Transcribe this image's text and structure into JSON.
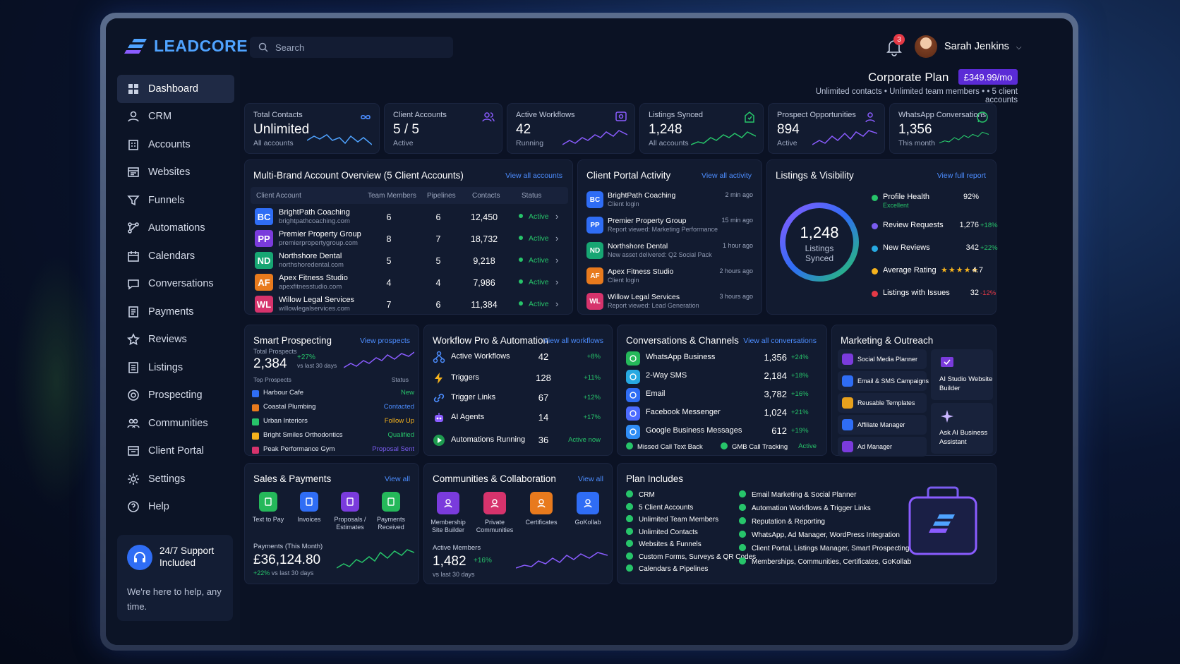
{
  "brand": {
    "name": "LEADCORE"
  },
  "search": {
    "placeholder": "Search"
  },
  "notifications": {
    "count": "3"
  },
  "user": {
    "name": "Sarah Jenkins"
  },
  "plan": {
    "title": "Corporate Plan",
    "price": "£349.99/mo",
    "subtitle": "Unlimited contacts • Unlimited team members • • 5 client accounts"
  },
  "sidebar": {
    "items": [
      {
        "label": "Dashboard",
        "icon": "grid-icon"
      },
      {
        "label": "CRM",
        "icon": "user-icon"
      },
      {
        "label": "Accounts",
        "icon": "building-icon"
      },
      {
        "label": "Websites",
        "icon": "browser-icon"
      },
      {
        "label": "Funnels",
        "icon": "funnel-icon"
      },
      {
        "label": "Automations",
        "icon": "flow-icon"
      },
      {
        "label": "Calendars",
        "icon": "calendar-icon"
      },
      {
        "label": "Conversations",
        "icon": "chat-icon"
      },
      {
        "label": "Payments",
        "icon": "receipt-icon"
      },
      {
        "label": "Reviews",
        "icon": "star-icon"
      },
      {
        "label": "Listings",
        "icon": "list-icon"
      },
      {
        "label": "Prospecting",
        "icon": "target-icon"
      },
      {
        "label": "Communities",
        "icon": "group-icon"
      },
      {
        "label": "Client Portal",
        "icon": "portal-icon"
      },
      {
        "label": "Settings",
        "icon": "gear-icon"
      },
      {
        "label": "Help",
        "icon": "help-icon"
      }
    ],
    "support_title": "24/7 Support Included",
    "support_text": "We're here to help, any time."
  },
  "stats": [
    {
      "label": "Total Contacts",
      "value": "Unlimited",
      "sub": "All accounts",
      "icon": "infinity-icon"
    },
    {
      "label": "Client Accounts",
      "value": "5 / 5",
      "sub": "Active",
      "icon": "users-icon"
    },
    {
      "label": "Active Workflows",
      "value": "42",
      "sub": "Running",
      "icon": "workflow-icon"
    },
    {
      "label": "Listings Synced",
      "value": "1,248",
      "sub": "All accounts",
      "icon": "sync-icon"
    },
    {
      "label": "Prospect Opportunities",
      "value": "894",
      "sub": "Active",
      "icon": "prospect-icon"
    },
    {
      "label": "WhatsApp Conversations",
      "value": "1,356",
      "sub": "This month",
      "icon": "whatsapp-icon"
    }
  ],
  "overview": {
    "title": "Multi-Brand Account Overview (5 Client Accounts)",
    "link": "View all accounts",
    "headers": [
      "Client Account",
      "Team Members",
      "Pipelines",
      "Contacts",
      "Status"
    ],
    "rows": [
      {
        "initials": "BC",
        "name": "BrightPath Coaching",
        "site": "brightpathcoaching.com",
        "team": "6",
        "pipelines": "6",
        "contacts": "12,450",
        "status": "Active",
        "color": "#2f6df5"
      },
      {
        "initials": "PP",
        "name": "Premier Property Group",
        "site": "premierpropertygroup.com",
        "team": "8",
        "pipelines": "7",
        "contacts": "18,732",
        "status": "Active",
        "color": "#7a3bdc"
      },
      {
        "initials": "ND",
        "name": "Northshore Dental",
        "site": "northshoredental.com",
        "team": "5",
        "pipelines": "5",
        "contacts": "9,218",
        "status": "Active",
        "color": "#17a673"
      },
      {
        "initials": "AF",
        "name": "Apex Fitness Studio",
        "site": "apexfitnesstudio.com",
        "team": "4",
        "pipelines": "4",
        "contacts": "7,986",
        "status": "Active",
        "color": "#e87a1d"
      },
      {
        "initials": "WL",
        "name": "Willow Legal Services",
        "site": "willowlegalservices.com",
        "team": "7",
        "pipelines": "6",
        "contacts": "11,384",
        "status": "Active",
        "color": "#d6336c"
      }
    ]
  },
  "portal": {
    "title": "Client Portal Activity",
    "link": "View all activity",
    "items": [
      {
        "initials": "BC",
        "name": "BrightPath Coaching",
        "sub": "Client login",
        "time": "2 min ago",
        "color": "#2f6df5"
      },
      {
        "initials": "PP",
        "name": "Premier Property Group",
        "sub": "Report viewed: Marketing Performance",
        "time": "15 min ago",
        "color": "#2f6df5"
      },
      {
        "initials": "ND",
        "name": "Northshore Dental",
        "sub": "New asset delivered: Q2 Social Pack",
        "time": "1 hour ago",
        "color": "#17a673"
      },
      {
        "initials": "AF",
        "name": "Apex Fitness Studio",
        "sub": "Client login",
        "time": "2 hours ago",
        "color": "#e87a1d"
      },
      {
        "initials": "WL",
        "name": "Willow Legal Services",
        "sub": "Report viewed: Lead Generation",
        "time": "3 hours ago",
        "color": "#d6336c"
      }
    ]
  },
  "listings": {
    "title": "Listings & Visibility",
    "link": "View full report",
    "ring_value": "1,248",
    "ring_label1": "Listings",
    "ring_label2": "Synced",
    "items": [
      {
        "label": "Profile Health",
        "sub": "Excellent",
        "value": "92%",
        "change": "",
        "color": "#27c46a"
      },
      {
        "label": "Review Requests",
        "value": "1,276",
        "change": "+18%",
        "color": "#7a5cf0"
      },
      {
        "label": "New Reviews",
        "value": "342",
        "change": "+22%",
        "color": "#27a9e1"
      },
      {
        "label": "Average Rating",
        "value": "4.7",
        "change": "",
        "stars": "★★★★★",
        "color": "#f5b21d"
      },
      {
        "label": "Listings with Issues",
        "value": "32",
        "change": "-12%",
        "color": "#e53946"
      }
    ]
  },
  "prospecting": {
    "title": "Smart Prospecting",
    "link": "View prospects",
    "total_label": "Total Prospects",
    "total": "2,384",
    "change": "+27%",
    "period": "vs last 30 days",
    "col1": "Top Prospects",
    "col2": "Status",
    "rows": [
      {
        "name": "Harbour Cafe",
        "status": "New",
        "color": "#2f6df5",
        "scolor": "#27c46a"
      },
      {
        "name": "Coastal Plumbing",
        "status": "Contacted",
        "color": "#e87a1d",
        "scolor": "#4c8dff"
      },
      {
        "name": "Urban Interiors",
        "status": "Follow Up",
        "color": "#27c46a",
        "scolor": "#f5b21d"
      },
      {
        "name": "Bright Smiles Orthodontics",
        "status": "Qualified",
        "color": "#f5b21d",
        "scolor": "#27c46a"
      },
      {
        "name": "Peak Performance Gym",
        "status": "Proposal Sent",
        "color": "#d6336c",
        "scolor": "#7a5cf0"
      }
    ]
  },
  "workflow": {
    "title": "Workflow Pro & Automation",
    "link": "View all workflows",
    "rows": [
      {
        "label": "Active Workflows",
        "value": "42",
        "change": "+8%"
      },
      {
        "label": "Triggers",
        "value": "128",
        "change": "+11%"
      },
      {
        "label": "Trigger Links",
        "value": "67",
        "change": "+12%"
      },
      {
        "label": "AI Agents",
        "value": "14",
        "change": "+17%"
      },
      {
        "label": "Automations Running",
        "value": "36",
        "change": "Active now"
      }
    ]
  },
  "conversations": {
    "title": "Conversations & Channels",
    "link": "View all conversations",
    "rows": [
      {
        "label": "WhatsApp Business",
        "value": "1,356",
        "change": "+24%",
        "color": "#25b85a"
      },
      {
        "label": "2-Way SMS",
        "value": "2,184",
        "change": "+18%",
        "color": "#27a9e1"
      },
      {
        "label": "Email",
        "value": "3,782",
        "change": "+16%",
        "color": "#2f6df5"
      },
      {
        "label": "Facebook Messenger",
        "value": "1,024",
        "change": "+21%",
        "color": "#4c6bff"
      },
      {
        "label": "Google Business Messages",
        "value": "612",
        "change": "+19%",
        "color": "#2f8df5"
      }
    ],
    "footer1": "Missed Call Text Back",
    "footer2": "GMB Call Tracking",
    "footer2_status": "Active"
  },
  "marketing": {
    "title": "Marketing & Outreach",
    "items": [
      {
        "label": "Social Media Planner",
        "color": "#7a3bdc"
      },
      {
        "label": "Email & SMS Campaigns",
        "color": "#2f6df5"
      },
      {
        "label": "Reusable Templates",
        "color": "#e8a11d"
      },
      {
        "label": "Affiliate Manager",
        "color": "#2f6df5"
      },
      {
        "label": "Ad Manager",
        "color": "#7a3bdc"
      }
    ],
    "big1": "AI Studio Website Builder",
    "big2": "Ask AI Business Assistant"
  },
  "sales": {
    "title": "Sales & Payments",
    "link": "View all",
    "icons": [
      {
        "label": "Text to Pay",
        "color": "#25b85a"
      },
      {
        "label": "Invoices",
        "color": "#2f6df5"
      },
      {
        "label": "Proposals / Estimates",
        "color": "#7a3bdc"
      },
      {
        "label": "Payments Received",
        "color": "#25b85a"
      }
    ],
    "payments_label": "Payments (This Month)",
    "payments_value": "£36,124.80",
    "change": "+22%",
    "period": "vs last 30 days"
  },
  "communities": {
    "title": "Communities & Collaboration",
    "link": "View all",
    "icons": [
      {
        "label": "Membership Site Builder",
        "color": "#7a3bdc"
      },
      {
        "label": "Private Communities",
        "color": "#d6336c"
      },
      {
        "label": "Certificates",
        "color": "#e87a1d"
      },
      {
        "label": "GoKollab",
        "color": "#2f6df5"
      }
    ],
    "members_label": "Active Members",
    "members_value": "1,482",
    "change": "+16%",
    "period": "vs last 30 days"
  },
  "plan_includes": {
    "title": "Plan Includes",
    "col1": [
      "CRM",
      "5 Client Accounts",
      "Unlimited Team Members",
      "Unlimited Contacts",
      "Websites & Funnels",
      "Custom Forms, Surveys & QR Codes",
      "Calendars & Pipelines"
    ],
    "col2": [
      "Email Marketing & Social Planner",
      "Automation Workflows & Trigger Links",
      "Reputation & Reporting",
      "WhatsApp, Ad Manager, WordPress Integration",
      "Client Portal, Listings Manager, Smart Prospecting",
      "Memberships, Communities, Certificates, GoKollab"
    ]
  }
}
